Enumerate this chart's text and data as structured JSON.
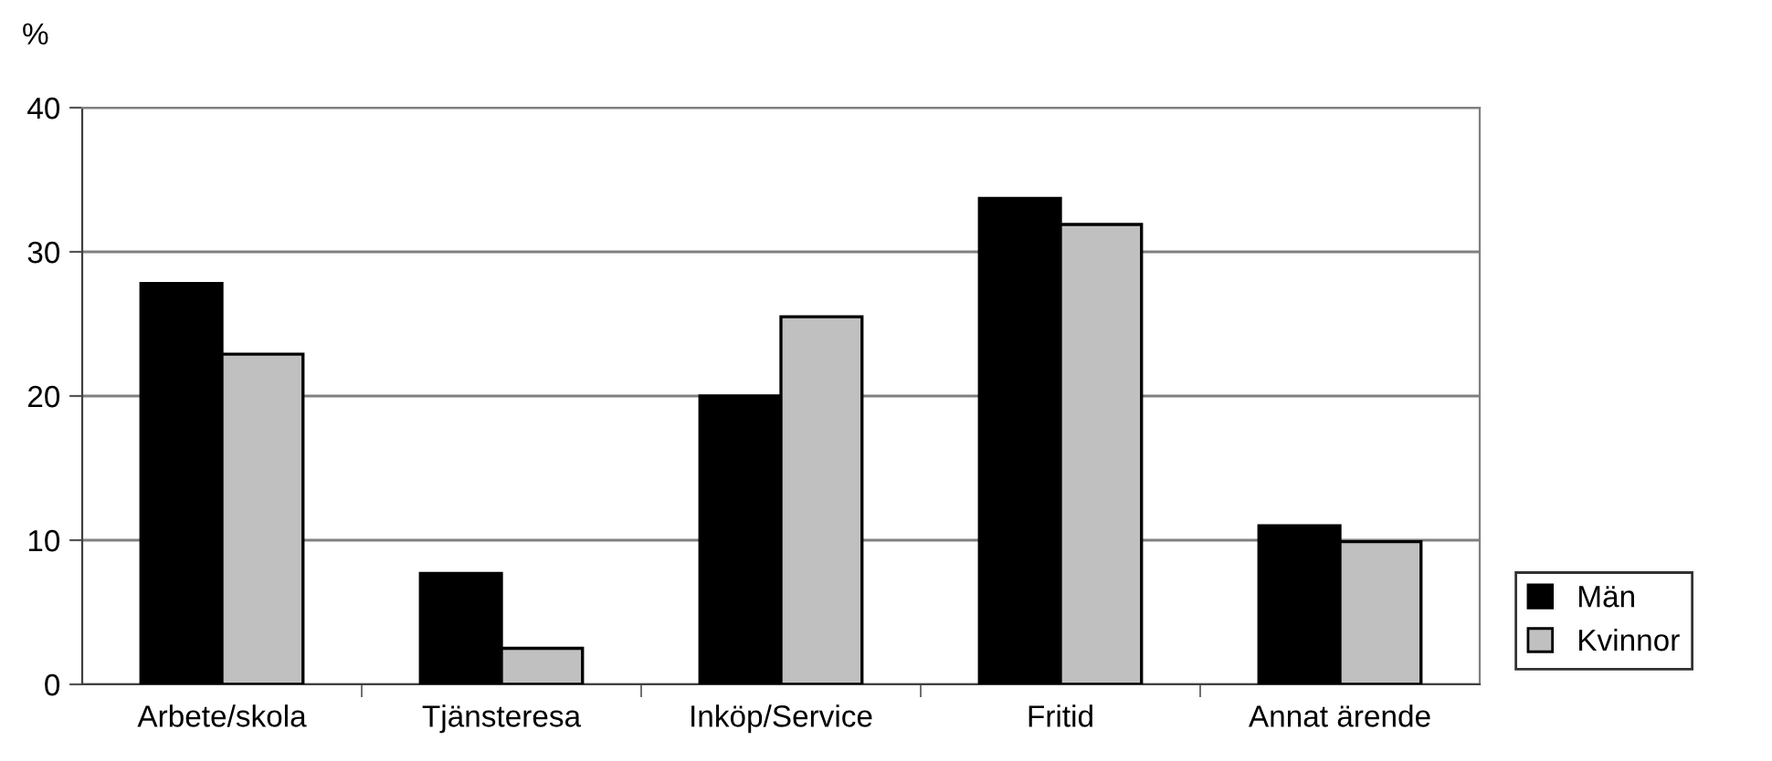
{
  "chart_data": {
    "type": "bar",
    "ylabel": "%",
    "categories": [
      "Arbete/skola",
      "Tjänsteresa",
      "Inköp/Service",
      "Fritid",
      "Annat ärende"
    ],
    "series": [
      {
        "name": "Män",
        "color": "#000000",
        "values": [
          27.8,
          7.7,
          20,
          33.7,
          11
        ]
      },
      {
        "name": "Kvinnor",
        "color": "#c0c0c0",
        "values": [
          22.9,
          2.5,
          25.5,
          31.9,
          9.9
        ]
      }
    ],
    "ylim": [
      0,
      40
    ],
    "yticks": [
      0,
      10,
      20,
      30,
      40
    ],
    "grid": "y",
    "legend": "right"
  }
}
